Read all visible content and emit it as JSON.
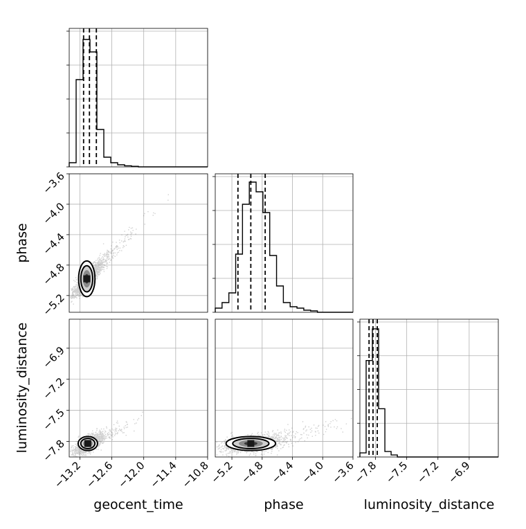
{
  "chart_data": {
    "type": "corner",
    "parameters": [
      "geocent_time",
      "phase",
      "luminosity_distance"
    ],
    "labels": {
      "geocent_time": "geocent_time",
      "phase": "phase",
      "luminosity_distance": "luminosity_distance"
    },
    "axis_ranges": {
      "geocent_time": [
        -13.4,
        -10.8
      ],
      "phase": [
        -5.42,
        -3.6
      ],
      "luminosity_distance": [
        -7.95,
        -6.62
      ]
    },
    "ticks": {
      "geocent_time": [
        "−13.2",
        "−12.6",
        "−12.0",
        "−11.4",
        "−10.8"
      ],
      "phase": [
        "−5.2",
        "−4.8",
        "−4.4",
        "−4.0",
        "−3.6"
      ],
      "luminosity_distance": [
        "−7.8",
        "−7.5",
        "−7.2",
        "−6.9"
      ]
    },
    "tick_values": {
      "geocent_time": [
        -13.2,
        -12.6,
        -12.0,
        -11.4,
        -10.8
      ],
      "phase": [
        -5.2,
        -4.8,
        -4.4,
        -4.0,
        -3.6
      ],
      "luminosity_distance": [
        -7.8,
        -7.5,
        -7.2,
        -6.9
      ]
    },
    "histograms": [
      {
        "parameter": "geocent_time",
        "bins": [
          -13.4,
          -13.27,
          -13.14,
          -13.01,
          -12.88,
          -12.75,
          -12.62,
          -12.49,
          -12.36,
          -12.23,
          -12.1,
          -11.97
        ],
        "counts": [
          0.03,
          0.63,
          0.92,
          0.83,
          0.27,
          0.07,
          0.03,
          0.015,
          0.008,
          0.004,
          0
        ],
        "quantiles": [
          -13.13,
          -13.02,
          -12.89
        ]
      },
      {
        "parameter": "phase",
        "bins": [
          -5.42,
          -5.33,
          -5.24,
          -5.15,
          -5.06,
          -4.97,
          -4.88,
          -4.79,
          -4.7,
          -4.61,
          -4.52,
          -4.43,
          -4.34,
          -4.25,
          -4.16,
          -4.07
        ],
        "counts": [
          0.03,
          0.07,
          0.14,
          0.42,
          0.78,
          0.94,
          0.87,
          0.72,
          0.41,
          0.19,
          0.07,
          0.04,
          0.03,
          0.015,
          0.01
        ],
        "quantiles": [
          -5.12,
          -4.95,
          -4.76
        ]
      },
      {
        "parameter": "luminosity_distance",
        "bins": [
          -7.95,
          -7.89,
          -7.83,
          -7.77,
          -7.71,
          -7.65,
          -7.59,
          -7.53
        ],
        "counts": [
          0.03,
          0.7,
          0.93,
          0.35,
          0.04,
          0.015,
          0
        ],
        "quantiles": [
          -7.862,
          -7.824,
          -7.783
        ]
      }
    ],
    "scatter_pairs": [
      {
        "x": "geocent_time",
        "y": "phase",
        "center": [
          -13.07,
          -4.98
        ],
        "spread": [
          0.16,
          0.13
        ],
        "correlation": 0.9
      },
      {
        "x": "geocent_time",
        "y": "luminosity_distance",
        "center": [
          -13.05,
          -7.82
        ],
        "spread": [
          0.14,
          0.05
        ],
        "correlation": 0.7
      },
      {
        "x": "phase",
        "y": "luminosity_distance",
        "center": [
          -4.95,
          -7.82
        ],
        "spread": [
          0.2,
          0.04
        ],
        "correlation": 0.3
      }
    ],
    "grid": true,
    "density_contours": true
  }
}
